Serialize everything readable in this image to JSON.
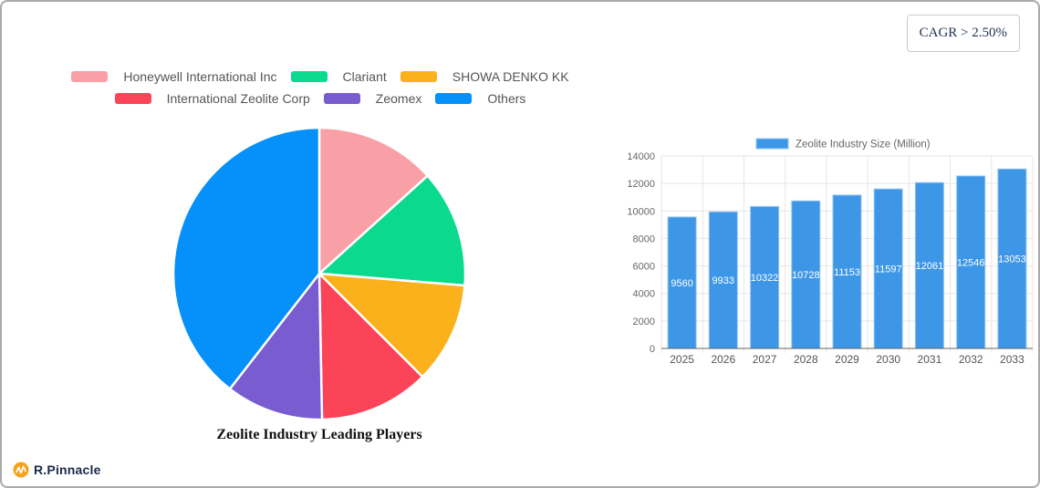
{
  "cagr_badge": {
    "label": "CAGR > 2.50%"
  },
  "branding": {
    "logo_text": "R.Pinnacle",
    "logo_icon": "pulse-zigzag-icon",
    "logo_icon_color": "#F5A31D",
    "logo_text_color": "#1B2A4A"
  },
  "chart_data": [
    {
      "type": "pie",
      "title": "Zeolite Industry Leading Players",
      "legend_position": "top",
      "legend_rows": [
        [
          0,
          1,
          2
        ],
        [
          3,
          4,
          5
        ]
      ],
      "start_angle": "12-oclock-clockwise",
      "values_note": "percentages estimated from slice angles; no numeric labels shown in image",
      "slices": [
        {
          "label": "Honeywell International Inc",
          "color": "#F99FA6",
          "value_pct": 13.3
        },
        {
          "label": "Clariant",
          "color": "#0BDA8E",
          "value_pct": 13.0
        },
        {
          "label": "SHOWA DENKO KK",
          "color": "#FBB11B",
          "value_pct": 11.2
        },
        {
          "label": "International Zeolite Corp",
          "color": "#FC4458",
          "value_pct": 12.2
        },
        {
          "label": "Zeomex",
          "color": "#785CD0",
          "value_pct": 10.8
        },
        {
          "label": "Others",
          "color": "#0590FA",
          "value_pct": 39.5
        }
      ]
    },
    {
      "type": "bar",
      "categories": [
        "2025",
        "2026",
        "2027",
        "2028",
        "2029",
        "2030",
        "2031",
        "2032",
        "2033"
      ],
      "series": [
        {
          "name": "Zeolite Industry Size (Million)",
          "values": [
            9560,
            9933,
            10322,
            10728,
            11153,
            11597,
            12061,
            12546,
            13053
          ]
        }
      ],
      "xlabel": "",
      "ylabel": "",
      "ylim": [
        0,
        14000
      ],
      "yticks": [
        0,
        2000,
        4000,
        6000,
        8000,
        10000,
        12000,
        14000
      ],
      "grid": true,
      "legend_position": "top",
      "bar_color": "#3E97E6",
      "bar_border_color": "#92C4F0",
      "value_label_color": "#FFFFFF",
      "value_label_position": "inside-center"
    }
  ]
}
